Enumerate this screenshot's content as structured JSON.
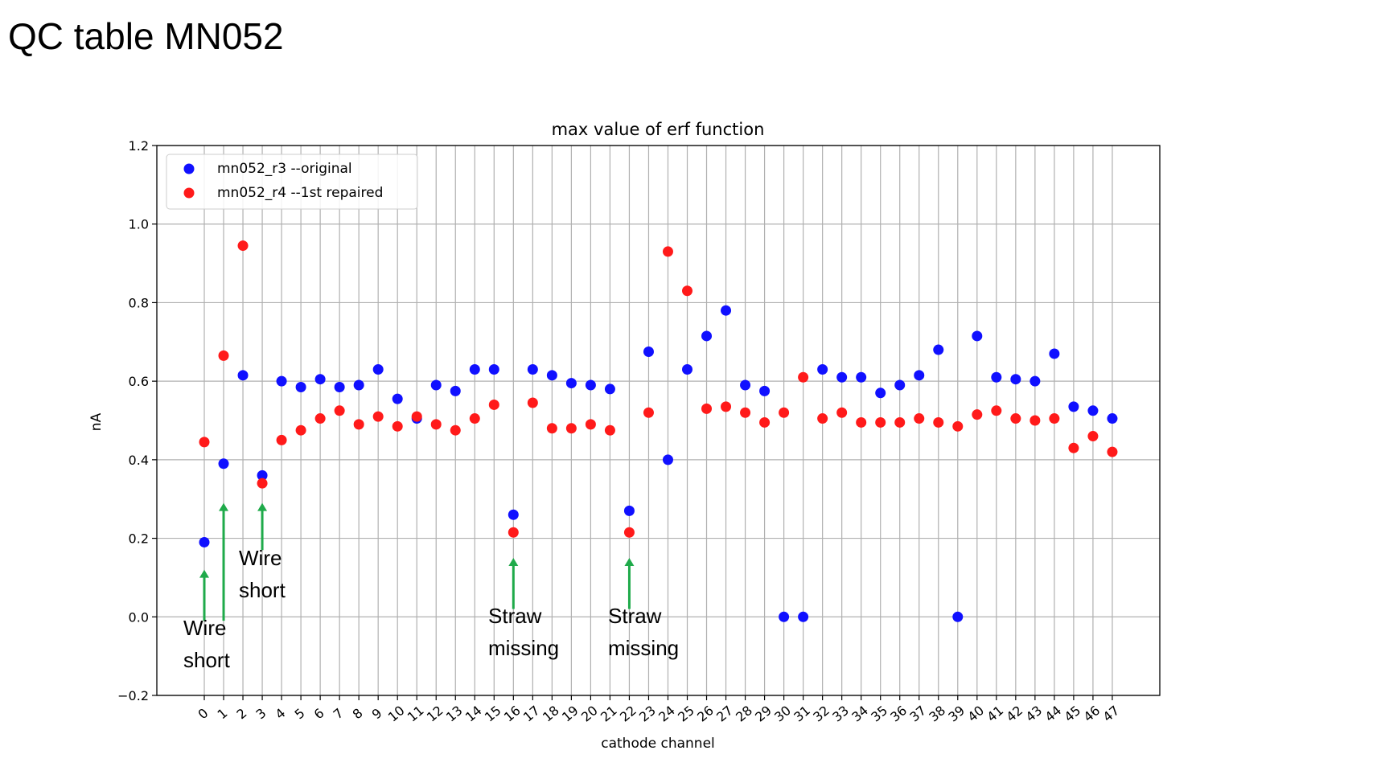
{
  "slide": {
    "title": "QC table MN052"
  },
  "colors": {
    "series_blue": "#1010ff",
    "series_red": "#ff1a1a",
    "arrow": "#1faa4a",
    "grid": "#b0b0b0"
  },
  "chart_data": {
    "type": "scatter",
    "title": "max value of erf function",
    "xlabel": "cathode channel",
    "ylabel": "nA",
    "ylim": [
      -0.2,
      1.2
    ],
    "yticks": [
      "−0.2",
      "0.0",
      "0.2",
      "0.4",
      "0.6",
      "0.8",
      "1.0",
      "1.2"
    ],
    "x": [
      0,
      1,
      2,
      3,
      4,
      5,
      6,
      7,
      8,
      9,
      10,
      11,
      12,
      13,
      14,
      15,
      16,
      17,
      18,
      19,
      20,
      21,
      22,
      23,
      24,
      25,
      26,
      27,
      28,
      29,
      30,
      31,
      32,
      33,
      34,
      35,
      36,
      37,
      38,
      39,
      40,
      41,
      42,
      43,
      44,
      45,
      46,
      47
    ],
    "xtick_labels": [
      "0",
      "1",
      "2",
      "3",
      "4",
      "5",
      "6",
      "7",
      "8",
      "9",
      "10",
      "11",
      "12",
      "13",
      "14",
      "15",
      "16",
      "17",
      "18",
      "19",
      "20",
      "21",
      "22",
      "23",
      "24",
      "25",
      "26",
      "27",
      "28",
      "29",
      "30",
      "31",
      "32",
      "33",
      "34",
      "35",
      "36",
      "37",
      "38",
      "39",
      "40",
      "41",
      "42",
      "43",
      "44",
      "45",
      "46",
      "47"
    ],
    "grid": true,
    "legend_position": "top-left",
    "series": [
      {
        "name": "mn052_r3 --original",
        "color": "#1010ff",
        "values": [
          0.19,
          0.39,
          0.615,
          0.36,
          0.6,
          0.585,
          0.605,
          0.585,
          0.59,
          0.63,
          0.555,
          0.505,
          0.59,
          0.575,
          0.63,
          0.63,
          0.26,
          0.63,
          0.615,
          0.595,
          0.59,
          0.58,
          0.27,
          0.675,
          0.4,
          0.63,
          0.715,
          0.78,
          0.59,
          0.575,
          0.0,
          0.0,
          0.63,
          0.61,
          0.61,
          0.57,
          0.59,
          0.615,
          0.68,
          0.0,
          0.715,
          0.61,
          0.605,
          0.6,
          0.67,
          0.535,
          0.525,
          0.505
        ]
      },
      {
        "name": "mn052_r4 --1st repaired",
        "color": "#ff1a1a",
        "values": [
          0.445,
          0.665,
          0.945,
          0.34,
          0.45,
          0.475,
          0.505,
          0.525,
          0.49,
          0.51,
          0.485,
          0.51,
          0.49,
          0.475,
          0.505,
          0.54,
          0.215,
          0.545,
          0.48,
          0.48,
          0.49,
          0.475,
          0.215,
          0.52,
          0.93,
          0.83,
          0.53,
          0.535,
          0.52,
          0.495,
          0.52,
          0.61,
          0.505,
          0.52,
          0.495,
          0.495,
          0.495,
          0.505,
          0.495,
          0.485,
          0.515,
          0.525,
          0.505,
          0.5,
          0.505,
          0.43,
          0.46,
          0.42
        ]
      }
    ],
    "annotations": [
      {
        "line1": "Wire",
        "line2": "short",
        "channel": 0
      },
      {
        "line1": "Wire",
        "line2": "short",
        "channel": 1
      },
      {
        "line1": "Straw",
        "line2": "missing",
        "channel": 16
      },
      {
        "line1": "Straw",
        "line2": "missing",
        "channel": 22
      }
    ]
  }
}
